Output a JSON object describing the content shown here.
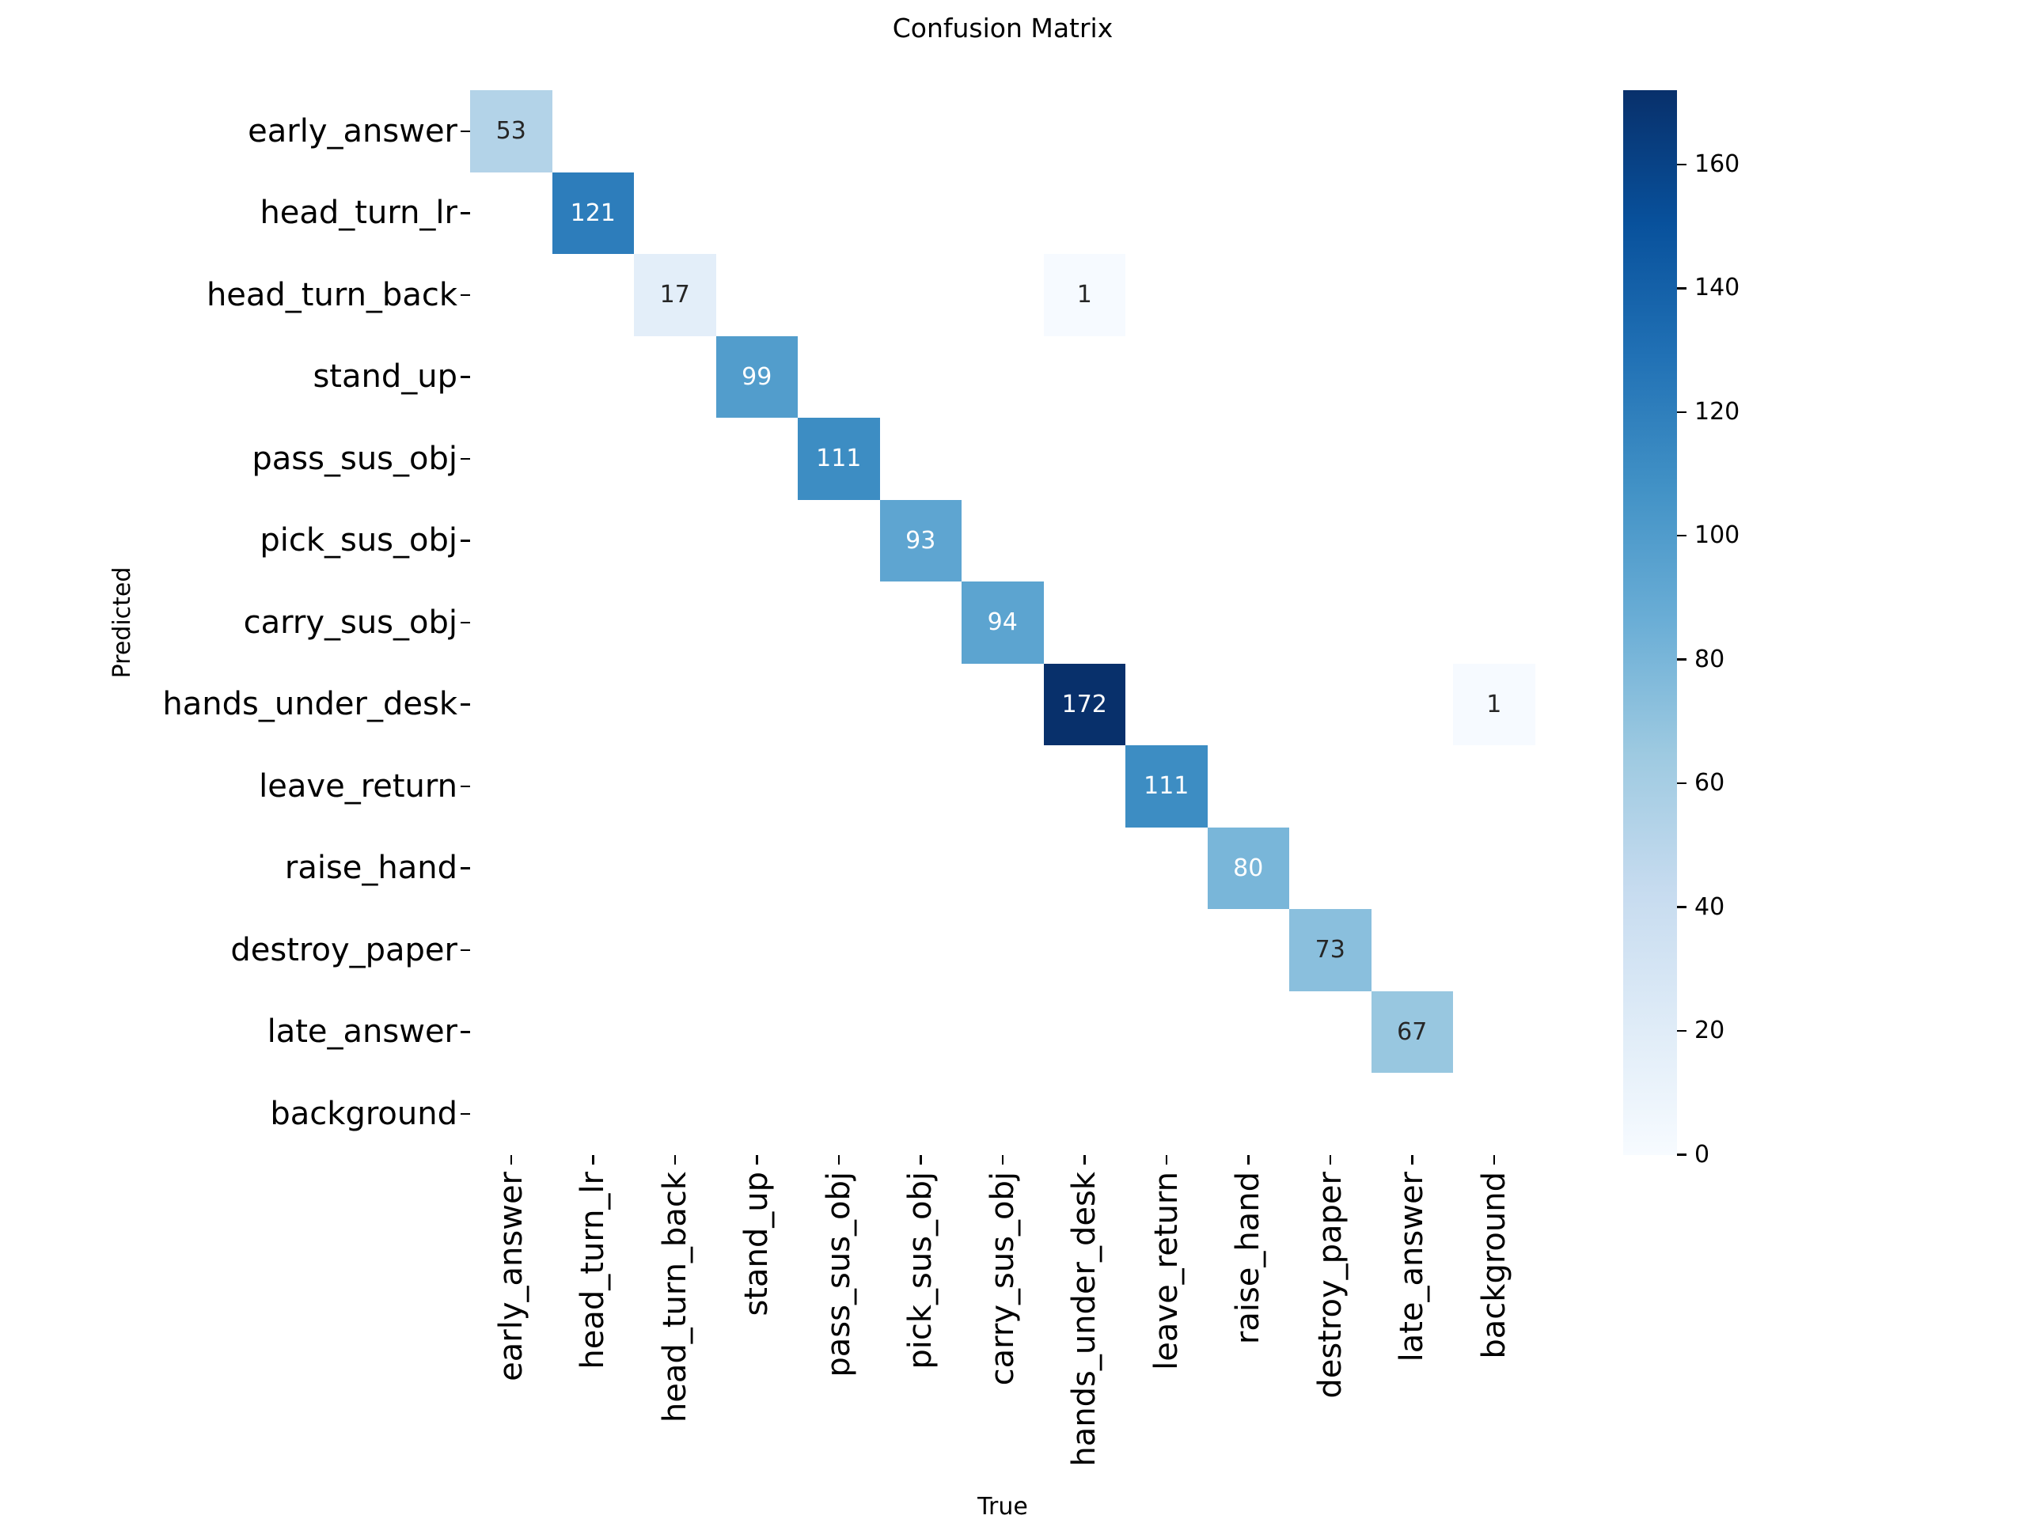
{
  "figure": {
    "background": "#ffffff"
  },
  "chart_data": {
    "type": "heatmap",
    "title": "Confusion Matrix",
    "xlabel": "True",
    "ylabel": "Predicted",
    "categories": [
      "early_answer",
      "head_turn_lr",
      "head_turn_back",
      "stand_up",
      "pass_sus_obj",
      "pick_sus_obj",
      "carry_sus_obj",
      "hands_under_desk",
      "leave_return",
      "raise_hand",
      "destroy_paper",
      "late_answer",
      "background"
    ],
    "matrix": [
      [
        53,
        0,
        0,
        0,
        0,
        0,
        0,
        0,
        0,
        0,
        0,
        0,
        0
      ],
      [
        0,
        121,
        0,
        0,
        0,
        0,
        0,
        0,
        0,
        0,
        0,
        0,
        0
      ],
      [
        0,
        0,
        17,
        0,
        0,
        0,
        0,
        1,
        0,
        0,
        0,
        0,
        0
      ],
      [
        0,
        0,
        0,
        99,
        0,
        0,
        0,
        0,
        0,
        0,
        0,
        0,
        0
      ],
      [
        0,
        0,
        0,
        0,
        111,
        0,
        0,
        0,
        0,
        0,
        0,
        0,
        0
      ],
      [
        0,
        0,
        0,
        0,
        0,
        93,
        0,
        0,
        0,
        0,
        0,
        0,
        0
      ],
      [
        0,
        0,
        0,
        0,
        0,
        0,
        94,
        0,
        0,
        0,
        0,
        0,
        0
      ],
      [
        0,
        0,
        0,
        0,
        0,
        0,
        0,
        172,
        0,
        0,
        0,
        0,
        1
      ],
      [
        0,
        0,
        0,
        0,
        0,
        0,
        0,
        0,
        111,
        0,
        0,
        0,
        0
      ],
      [
        0,
        0,
        0,
        0,
        0,
        0,
        0,
        0,
        0,
        80,
        0,
        0,
        0
      ],
      [
        0,
        0,
        0,
        0,
        0,
        0,
        0,
        0,
        0,
        0,
        73,
        0,
        0
      ],
      [
        0,
        0,
        0,
        0,
        0,
        0,
        0,
        0,
        0,
        0,
        0,
        67,
        0
      ],
      [
        0,
        0,
        0,
        0,
        0,
        0,
        0,
        0,
        0,
        0,
        0,
        0,
        0
      ]
    ],
    "vmin": 0,
    "vmax": 172,
    "colormap": "Blues",
    "colormap_stops": [
      "#f7fbff",
      "#deebf7",
      "#c6dbef",
      "#9ecae1",
      "#6baed6",
      "#4292c6",
      "#2171b5",
      "#08519c",
      "#08306b"
    ],
    "colorbar_ticks": [
      0,
      20,
      40,
      60,
      80,
      100,
      120,
      140,
      160
    ],
    "annotation_colors": {
      "light_text": "#ffffff",
      "dark_text": "#262626",
      "white_text_threshold": 0.44
    },
    "zero_cell_color": "#ffffff",
    "grid": false,
    "legend_position": "right-colorbar"
  }
}
